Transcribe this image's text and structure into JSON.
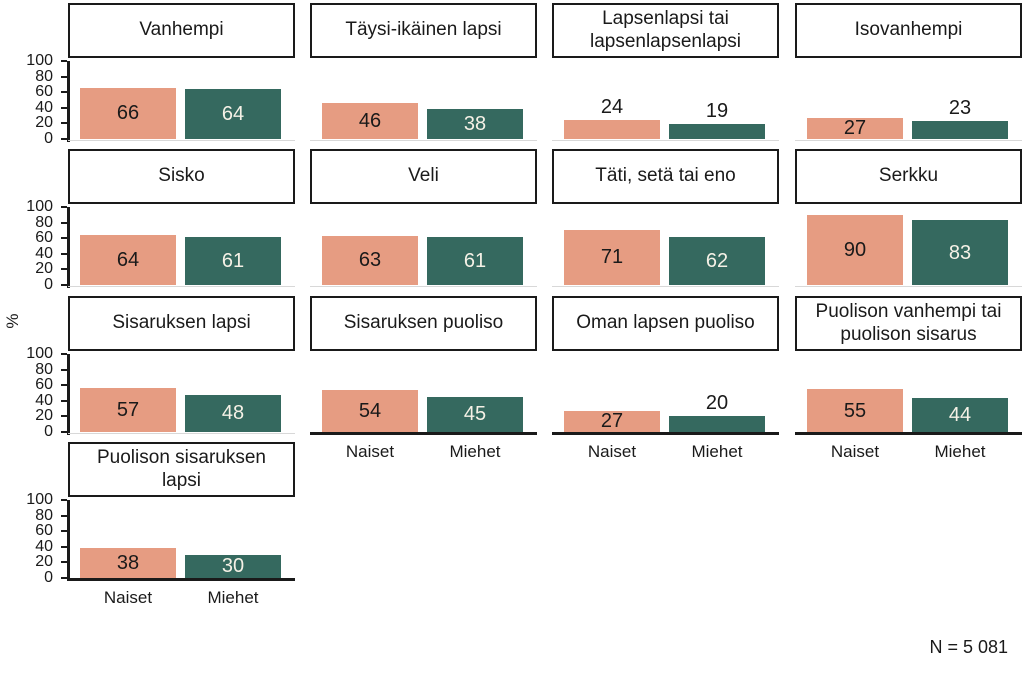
{
  "chart_data": {
    "type": "bar",
    "title": "",
    "ylabel": "%",
    "note": "N = 5 081",
    "categories": [
      "Naiset",
      "Miehet"
    ],
    "y_ticks": [
      0,
      20,
      40,
      60,
      80,
      100
    ],
    "ylim": [
      0,
      100
    ],
    "grid": false,
    "legend": "none",
    "inside_label_min": 25,
    "colors": {
      "naiset_bar": "#E69C82",
      "miehet_bar": "#35695F",
      "label_on_naiset": "#1a1a1a",
      "label_on_miehet": "#F5F1E6",
      "label_above": "#1a1a1a",
      "axis": "#1a1a1a",
      "light_baseline": "#d8d8d8"
    },
    "panels": [
      {
        "title": "Vanhempi",
        "row": 0,
        "col": 0,
        "series": {
          "Naiset": 66,
          "Miehet": 64
        },
        "x_labels": false
      },
      {
        "title": "Täysi-ikäinen lapsi",
        "row": 0,
        "col": 1,
        "series": {
          "Naiset": 46,
          "Miehet": 38
        },
        "x_labels": false
      },
      {
        "title": "Lapsenlapsi tai lapsenlapsenlapsi",
        "row": 0,
        "col": 2,
        "series": {
          "Naiset": 24,
          "Miehet": 19
        },
        "x_labels": false
      },
      {
        "title": "Isovanhempi",
        "row": 0,
        "col": 3,
        "series": {
          "Naiset": 27,
          "Miehet": 23
        },
        "x_labels": false
      },
      {
        "title": "Sisko",
        "row": 1,
        "col": 0,
        "series": {
          "Naiset": 64,
          "Miehet": 61
        },
        "x_labels": false
      },
      {
        "title": "Veli",
        "row": 1,
        "col": 1,
        "series": {
          "Naiset": 63,
          "Miehet": 61
        },
        "x_labels": false
      },
      {
        "title": "Täti, setä tai eno",
        "row": 1,
        "col": 2,
        "series": {
          "Naiset": 71,
          "Miehet": 62
        },
        "x_labels": false
      },
      {
        "title": "Serkku",
        "row": 1,
        "col": 3,
        "series": {
          "Naiset": 90,
          "Miehet": 83
        },
        "x_labels": false
      },
      {
        "title": "Sisaruksen lapsi",
        "row": 2,
        "col": 0,
        "series": {
          "Naiset": 57,
          "Miehet": 48
        },
        "x_labels": false
      },
      {
        "title": "Sisaruksen puoliso",
        "row": 2,
        "col": 1,
        "series": {
          "Naiset": 54,
          "Miehet": 45
        },
        "x_labels": true
      },
      {
        "title": "Oman lapsen puoliso",
        "row": 2,
        "col": 2,
        "series": {
          "Naiset": 27,
          "Miehet": 20
        },
        "x_labels": true
      },
      {
        "title": "Puolison vanhempi tai puolison sisarus",
        "row": 2,
        "col": 3,
        "series": {
          "Naiset": 55,
          "Miehet": 44
        },
        "x_labels": true
      },
      {
        "title": "Puolison sisaruksen lapsi",
        "row": 3,
        "col": 0,
        "series": {
          "Naiset": 38,
          "Miehet": 30
        },
        "x_labels": true
      }
    ]
  }
}
